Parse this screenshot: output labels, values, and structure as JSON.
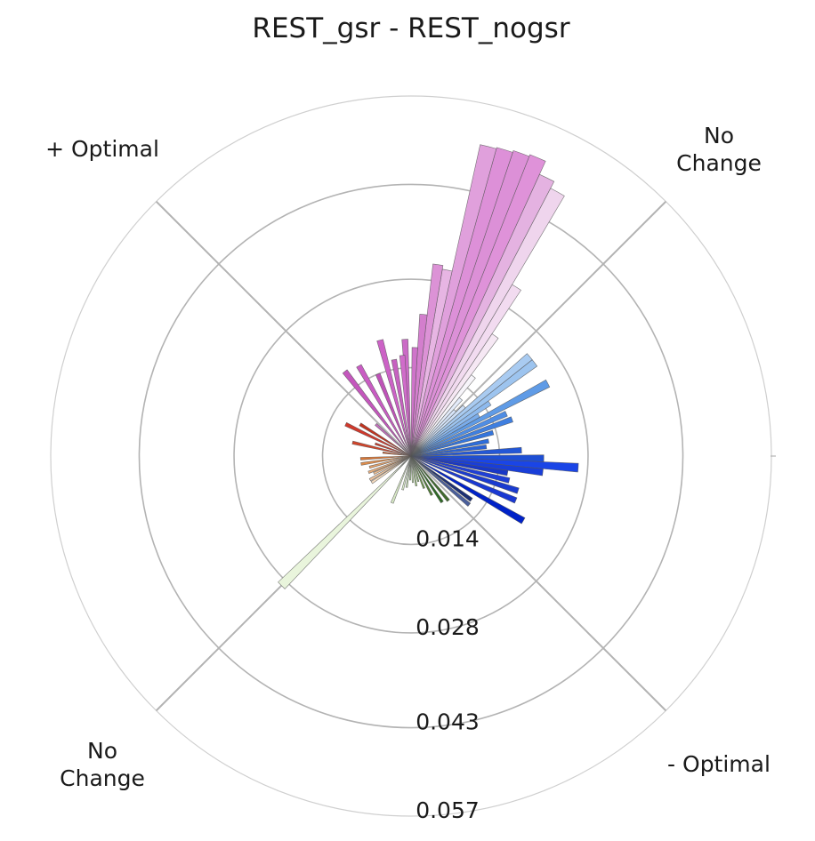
{
  "chart_data": {
    "type": "polar-bar",
    "title": "REST_gsr - REST_nogsr",
    "quadrant_labels": [
      {
        "key": "top_left",
        "lines": [
          "+ Optimal"
        ]
      },
      {
        "key": "top_right",
        "lines": [
          "No",
          "Change"
        ]
      },
      {
        "key": "bottom_right",
        "lines": [
          "- Optimal"
        ]
      },
      {
        "key": "bottom_left",
        "lines": [
          "No",
          "Change"
        ]
      }
    ],
    "r_ticks": [
      {
        "value": 0.014,
        "label": "0.014"
      },
      {
        "value": 0.028,
        "label": "0.028"
      },
      {
        "value": 0.043,
        "label": "0.043"
      },
      {
        "value": 0.057,
        "label": "0.057"
      }
    ],
    "rmax": 0.057,
    "bars": [
      {
        "angle": 23,
        "value": 0.0513,
        "color": "#df92d9"
      },
      {
        "angle": 20,
        "value": 0.051,
        "color": "#dc90d7"
      },
      {
        "angle": 17,
        "value": 0.0507,
        "color": "#dd90d8"
      },
      {
        "angle": 14,
        "value": 0.0505,
        "color": "#e0a0dc"
      },
      {
        "angle": 26,
        "value": 0.049,
        "color": "#e4b2e1"
      },
      {
        "angle": 29,
        "value": 0.0478,
        "color": "#efd5ed"
      },
      {
        "angle": 32,
        "value": 0.0315,
        "color": "#f2dbf0"
      },
      {
        "angle": 11,
        "value": 0.03,
        "color": "#e7b5e3"
      },
      {
        "angle": 8,
        "value": 0.0306,
        "color": "#dc92d6"
      },
      {
        "angle": 5,
        "value": 0.0225,
        "color": "#d37ecd"
      },
      {
        "angle": 2,
        "value": 0.0172,
        "color": "#cf74ca"
      },
      {
        "angle": -3,
        "value": 0.0185,
        "color": "#cb6ac6"
      },
      {
        "angle": 35,
        "value": 0.0232,
        "color": "#f6e8f4"
      },
      {
        "angle": 38,
        "value": 0.016,
        "color": "#f7f5fa"
      },
      {
        "angle": 41,
        "value": 0.012,
        "color": "#e4ecfa"
      },
      {
        "angle": 44,
        "value": 0.01,
        "color": "#d6e4f8"
      },
      {
        "angle": 47,
        "value": 0.0115,
        "color": "#cfe0f6"
      },
      {
        "angle": 50,
        "value": 0.0245,
        "color": "#a9cbf1"
      },
      {
        "angle": 53,
        "value": 0.0245,
        "color": "#9dc4ef"
      },
      {
        "angle": 56,
        "value": 0.015,
        "color": "#8ebaee"
      },
      {
        "angle": 59,
        "value": 0.0125,
        "color": "#7aacea"
      },
      {
        "angle": 62,
        "value": 0.0245,
        "color": "#5f9be6"
      },
      {
        "angle": 66,
        "value": 0.0165,
        "color": "#4f8de4"
      },
      {
        "angle": 70,
        "value": 0.017,
        "color": "#3f7fe0"
      },
      {
        "angle": 74,
        "value": 0.0135,
        "color": "#3475dd"
      },
      {
        "angle": 79,
        "value": 0.0125,
        "color": "#2d6ddb"
      },
      {
        "angle": 83,
        "value": 0.012,
        "color": "#2a63d8"
      },
      {
        "angle": 87,
        "value": 0.0175,
        "color": "#2357d6"
      },
      {
        "angle": 91,
        "value": 0.021,
        "color": "#1e4fd4"
      },
      {
        "angle": 94,
        "value": 0.0265,
        "color": "#1a45e6"
      },
      {
        "angle": 97,
        "value": 0.021,
        "color": "#193ed8"
      },
      {
        "angle": 100,
        "value": 0.0155,
        "color": "#1837c7"
      },
      {
        "angle": 104,
        "value": 0.016,
        "color": "#1f3fd6"
      },
      {
        "angle": 108,
        "value": 0.0178,
        "color": "#1a3bd0"
      },
      {
        "angle": 113,
        "value": 0.018,
        "color": "#1a39d2"
      },
      {
        "angle": 120,
        "value": 0.0205,
        "color": "#0022c8"
      },
      {
        "angle": 126,
        "value": 0.0118,
        "color": "#1b2f74"
      },
      {
        "angle": 130,
        "value": 0.012,
        "color": "#4a5f9c"
      },
      {
        "angle": 140,
        "value": 0.0092,
        "color": "#3f6b2c"
      },
      {
        "angle": 146,
        "value": 0.0088,
        "color": "#2e6a25"
      },
      {
        "angle": 152,
        "value": 0.007,
        "color": "#4f7d36"
      },
      {
        "angle": 158,
        "value": 0.0055,
        "color": "#6d9a4c"
      },
      {
        "angle": 164,
        "value": 0.0042,
        "color": "#86b06a"
      },
      {
        "angle": 170,
        "value": 0.0048,
        "color": "#9cc27f"
      },
      {
        "angle": 176,
        "value": 0.0042,
        "color": "#b7d59f"
      },
      {
        "angle": 182,
        "value": 0.0038,
        "color": "#a7c991"
      },
      {
        "angle": 188,
        "value": 0.005,
        "color": "#c4dcb1"
      },
      {
        "angle": 194,
        "value": 0.0055,
        "color": "#d9ebc9"
      },
      {
        "angle": 202,
        "value": 0.008,
        "color": "#d8e9c6"
      },
      {
        "angle": 225,
        "value": 0.029,
        "color": "#e9f5dc"
      },
      {
        "angle": 236,
        "value": 0.0075,
        "color": "#f4dcc0"
      },
      {
        "angle": 240,
        "value": 0.0075,
        "color": "#f0c7a2"
      },
      {
        "angle": 245,
        "value": 0.0065,
        "color": "#efbf93"
      },
      {
        "angle": 249,
        "value": 0.0072,
        "color": "#ebb17e"
      },
      {
        "angle": 255,
        "value": 0.0068,
        "color": "#e8a268"
      },
      {
        "angle": 261,
        "value": 0.008,
        "color": "#e08f4e"
      },
      {
        "angle": 267,
        "value": 0.008,
        "color": "#d97838"
      },
      {
        "angle": 277,
        "value": 0.0045,
        "color": "#d35d2a"
      },
      {
        "angle": 283,
        "value": 0.0095,
        "color": "#d1452a"
      },
      {
        "angle": 289,
        "value": 0.006,
        "color": "#cc3b2a"
      },
      {
        "angle": 296,
        "value": 0.0115,
        "color": "#d0392c"
      },
      {
        "angle": 302,
        "value": 0.0095,
        "color": "#c2341f"
      },
      {
        "angle": 312,
        "value": 0.0075,
        "color": "#c56fbe"
      },
      {
        "angle": 322,
        "value": 0.017,
        "color": "#c457bd"
      },
      {
        "angle": 330,
        "value": 0.0165,
        "color": "#c95cc3"
      },
      {
        "angle": 338,
        "value": 0.014,
        "color": "#bf52b8"
      },
      {
        "angle": 345,
        "value": 0.019,
        "color": "#cc62c6"
      },
      {
        "angle": 350,
        "value": 0.0155,
        "color": "#c661c0"
      },
      {
        "angle": 355,
        "value": 0.016,
        "color": "#d06cca"
      }
    ],
    "grid": true
  }
}
